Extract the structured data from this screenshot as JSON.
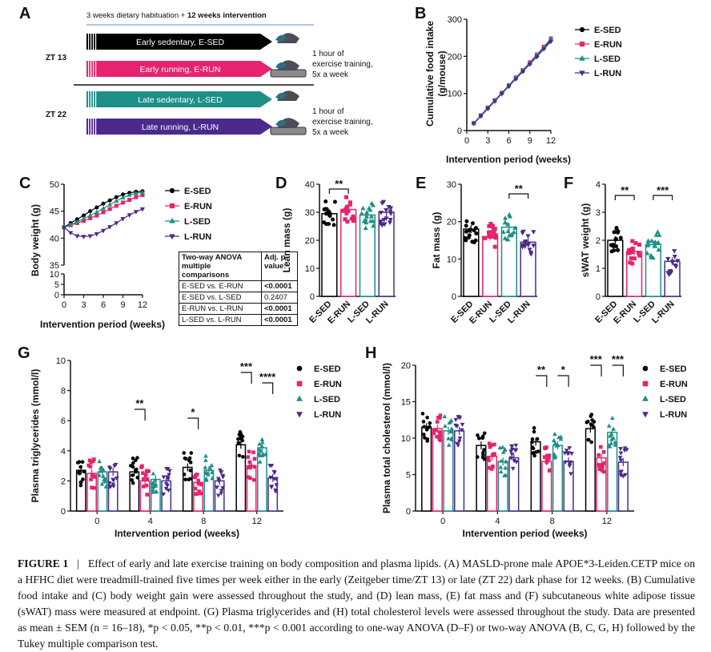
{
  "panel_letters": [
    "A",
    "B",
    "C",
    "D",
    "E",
    "F",
    "G",
    "H"
  ],
  "panelA": {
    "top_note_prefix": "3 weeks dietary habituation + ",
    "top_note_bold": "12 weeks intervention",
    "zt13": "ZT 13",
    "zt22": "ZT 22",
    "arrows": [
      {
        "label": "Early sedentary, E-SED",
        "color": "#000000"
      },
      {
        "label": "Early running, E-RUN",
        "color": "#e6236e"
      },
      {
        "label": "Late sedentary, L-SED",
        "color": "#1d8f86"
      },
      {
        "label": "Late running, L-RUN",
        "color": "#4b2a8c"
      }
    ],
    "exercise_note_1": [
      "1 hour of",
      "exercise training,",
      "5x a week"
    ],
    "exercise_note_2": [
      "1 hour of",
      "exercise training,",
      "5x a week"
    ]
  },
  "groups": [
    {
      "name": "E-SED",
      "color": "#000000",
      "marker": "circle"
    },
    {
      "name": "E-RUN",
      "color": "#e6236e",
      "marker": "square"
    },
    {
      "name": "L-SED",
      "color": "#1d8f86",
      "marker": "triangle"
    },
    {
      "name": "L-RUN",
      "color": "#4b2a8c",
      "marker": "triangle-down"
    }
  ],
  "table_C": {
    "headers": [
      "Two-way ANOVA multiple comparisons",
      "Adj. p-value:"
    ],
    "rows": [
      [
        "E-SED vs. E-RUN",
        "<0.0001"
      ],
      [
        "E-SED vs. L-SED",
        "0.2407"
      ],
      [
        "E-RUN vs. L-RUN",
        "<0.0001"
      ],
      [
        "L-SED vs. L-RUN",
        "<0.0001"
      ]
    ]
  },
  "chart_data": [
    {
      "panel": "B",
      "type": "line",
      "xlabel": "Intervention period (weeks)",
      "ylabel": "Cumulative food intake (g/mouse)",
      "xlim": [
        0,
        12
      ],
      "ylim": [
        0,
        300
      ],
      "xticks": [
        0,
        3,
        6,
        9,
        12
      ],
      "yticks": [
        0,
        100,
        200,
        300
      ],
      "x": [
        1,
        2,
        3,
        4,
        5,
        6,
        7,
        8,
        9,
        10,
        11,
        12
      ],
      "series": [
        {
          "name": "E-SED",
          "values": [
            20,
            40,
            60,
            80,
            100,
            120,
            140,
            160,
            180,
            200,
            222,
            243
          ]
        },
        {
          "name": "E-RUN",
          "values": [
            20,
            41,
            62,
            82,
            102,
            122,
            143,
            163,
            184,
            205,
            226,
            248
          ]
        },
        {
          "name": "L-SED",
          "values": [
            20,
            40,
            61,
            81,
            101,
            121,
            142,
            162,
            182,
            203,
            224,
            246
          ]
        },
        {
          "name": "L-RUN",
          "values": [
            19,
            39,
            59,
            79,
            99,
            119,
            139,
            159,
            179,
            199,
            220,
            240
          ]
        }
      ]
    },
    {
      "panel": "C",
      "type": "line",
      "xlabel": "Intervention period (weeks)",
      "ylabel": "Body weight (g)",
      "xlim": [
        0,
        12
      ],
      "ylim_upper": [
        35,
        50
      ],
      "ylim_lower": [
        0,
        10
      ],
      "xticks": [
        0,
        3,
        6,
        9,
        12
      ],
      "yticks_upper": [
        35,
        40,
        45,
        50
      ],
      "yticks_lower": [
        0,
        5,
        10
      ],
      "x": [
        0,
        1,
        2,
        3,
        4,
        5,
        6,
        7,
        8,
        9,
        10,
        11,
        12
      ],
      "series": [
        {
          "name": "E-SED",
          "values": [
            42.0,
            42.8,
            43.5,
            44.2,
            45.0,
            45.7,
            46.4,
            47.0,
            47.6,
            48.1,
            48.4,
            48.6,
            48.7
          ]
        },
        {
          "name": "E-RUN",
          "values": [
            42.0,
            42.4,
            42.8,
            43.2,
            43.7,
            44.2,
            44.8,
            45.4,
            46.0,
            46.6,
            47.1,
            47.6,
            48.0
          ]
        },
        {
          "name": "L-SED",
          "values": [
            42.0,
            42.5,
            43.0,
            43.6,
            44.2,
            44.8,
            45.5,
            46.2,
            46.9,
            47.5,
            48.0,
            48.3,
            48.5
          ]
        },
        {
          "name": "L-RUN",
          "values": [
            42.0,
            41.0,
            40.4,
            40.3,
            40.4,
            40.8,
            41.4,
            42.1,
            42.8,
            43.6,
            44.3,
            44.9,
            45.4
          ]
        }
      ]
    },
    {
      "panel": "D",
      "type": "bar",
      "ylabel": "Lean mass (g)",
      "categories": [
        "E-SED",
        "E-RUN",
        "L-SED",
        "L-RUN"
      ],
      "values": [
        29.5,
        31.0,
        29.0,
        30.0
      ],
      "ylim": [
        0,
        40
      ],
      "yticks": [
        0,
        10,
        20,
        30,
        40
      ],
      "significance": [
        {
          "between": [
            "E-SED",
            "E-RUN"
          ],
          "label": "**"
        }
      ]
    },
    {
      "panel": "E",
      "type": "bar",
      "ylabel": "Fat mass (g)",
      "categories": [
        "E-SED",
        "E-RUN",
        "L-SED",
        "L-RUN"
      ],
      "values": [
        18.0,
        16.0,
        18.5,
        14.5
      ],
      "ylim": [
        0,
        30
      ],
      "yticks": [
        0,
        10,
        20,
        30
      ],
      "significance": [
        {
          "between": [
            "L-SED",
            "L-RUN"
          ],
          "label": "**"
        }
      ]
    },
    {
      "panel": "F",
      "type": "bar",
      "ylabel": "sWAT weight (g)",
      "categories": [
        "E-SED",
        "E-RUN",
        "L-SED",
        "L-RUN"
      ],
      "values": [
        2.0,
        1.6,
        1.85,
        1.25
      ],
      "ylim": [
        0,
        4
      ],
      "yticks": [
        0,
        1,
        2,
        3,
        4
      ],
      "significance": [
        {
          "between": [
            "E-SED",
            "E-RUN"
          ],
          "label": "**"
        },
        {
          "between": [
            "L-SED",
            "L-RUN"
          ],
          "label": "***"
        }
      ]
    },
    {
      "panel": "G",
      "type": "bar",
      "xlabel": "Intervention period (weeks)",
      "ylabel": "Plasma triglycerides (mmol/l)",
      "categories": [
        "0",
        "4",
        "8",
        "12"
      ],
      "ylim": [
        0,
        10
      ],
      "yticks": [
        0,
        2,
        4,
        6,
        8,
        10
      ],
      "series": [
        {
          "name": "E-SED",
          "values": [
            2.7,
            2.6,
            2.9,
            4.4
          ]
        },
        {
          "name": "E-RUN",
          "values": [
            2.5,
            2.0,
            1.9,
            3.0
          ]
        },
        {
          "name": "L-SED",
          "values": [
            2.6,
            2.1,
            2.7,
            4.2
          ]
        },
        {
          "name": "L-RUN",
          "values": [
            2.6,
            2.0,
            2.0,
            2.2
          ]
        }
      ],
      "significance": [
        {
          "category": "4",
          "between": [
            "E-SED",
            "E-RUN"
          ],
          "label": "**"
        },
        {
          "category": "8",
          "between": [
            "E-SED",
            "E-RUN"
          ],
          "label": "*"
        },
        {
          "category": "12",
          "between": [
            "E-SED",
            "E-RUN"
          ],
          "label": "***"
        },
        {
          "category": "12",
          "between": [
            "L-SED",
            "L-RUN"
          ],
          "label": "****"
        }
      ]
    },
    {
      "panel": "H",
      "type": "bar",
      "xlabel": "Intervention period (weeks)",
      "ylabel": "Plasma total cholesterol (mmol/l)",
      "categories": [
        "0",
        "4",
        "8",
        "12"
      ],
      "ylim": [
        0,
        20
      ],
      "yticks": [
        0,
        5,
        10,
        15,
        20
      ],
      "series": [
        {
          "name": "E-SED",
          "values": [
            11.5,
            9.0,
            9.5,
            11.3
          ]
        },
        {
          "name": "E-RUN",
          "values": [
            11.3,
            7.5,
            6.8,
            7.3
          ]
        },
        {
          "name": "L-SED",
          "values": [
            11.0,
            6.8,
            9.0,
            10.8
          ]
        },
        {
          "name": "L-RUN",
          "values": [
            11.0,
            7.3,
            6.8,
            6.7
          ]
        }
      ],
      "significance": [
        {
          "category": "8",
          "between": [
            "E-SED",
            "E-RUN"
          ],
          "label": "**"
        },
        {
          "category": "8",
          "between": [
            "L-SED",
            "L-RUN"
          ],
          "label": "*"
        },
        {
          "category": "12",
          "between": [
            "E-SED",
            "E-RUN"
          ],
          "label": "***"
        },
        {
          "category": "12",
          "between": [
            "L-SED",
            "L-RUN"
          ],
          "label": "***"
        }
      ]
    }
  ],
  "caption": {
    "label": "FIGURE 1",
    "separator": "|",
    "text": "Effect of early and late exercise training on body composition and plasma lipids. (A) MASLD-prone male APOE*3-Leiden.CETP mice on a HFHC diet were treadmill-trained five times per week either in the early (Zeitgeber time/ZT 13) or late (ZT 22) dark phase for 12 weeks. (B) Cumulative food intake and (C) body weight gain were assessed throughout the study, and (D) lean mass, (E) fat mass and (F) subcutaneous white adipose tissue (sWAT) mass were measured at endpoint. (G) Plasma triglycerides and (H) total cholesterol levels were assessed throughout the study. Data are presented as mean ± SEM (n = 16–18), *p < 0.05, **p < 0.01, ***p < 0.001 according to one-way ANOVA (D–F) or two-way ANOVA (B, C, G, H) followed by the Tukey multiple comparison test."
  }
}
